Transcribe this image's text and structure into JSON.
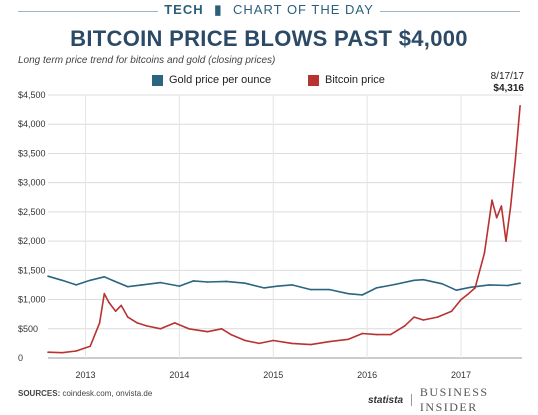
{
  "header": {
    "brand": "TECH",
    "brand_sub": "CHART OF THE DAY",
    "title": "BITCOIN PRICE BLOWS PAST $4,000",
    "subtitle": "Long term price trend for bitcoins and gold (closing prices)"
  },
  "legend": {
    "gold_label": "Gold price per ounce",
    "bitcoin_label": "Bitcoin price"
  },
  "annotation": {
    "date": "8/17/17",
    "value": "$4,316"
  },
  "footer": {
    "sources_label": "SOURCES:",
    "sources_text": "coindesk.com, onvista.de",
    "statista": "statista",
    "publisher": "BUSINESS INSIDER"
  },
  "colors": {
    "gold": "#2b6580",
    "bitcoin": "#b83232",
    "title": "#2c4a66"
  },
  "chart_data": {
    "type": "line",
    "ylim": [
      0,
      4500
    ],
    "xlim": [
      2012.6,
      2017.65
    ],
    "y_ticks": [
      {
        "value": 0,
        "label": "0"
      },
      {
        "value": 500,
        "label": "$500"
      },
      {
        "value": 1000,
        "label": "$1,000"
      },
      {
        "value": 1500,
        "label": "$1,500"
      },
      {
        "value": 2000,
        "label": "$2,000"
      },
      {
        "value": 2500,
        "label": "$2,500"
      },
      {
        "value": 3000,
        "label": "$3,000"
      },
      {
        "value": 3500,
        "label": "$3,500"
      },
      {
        "value": 4000,
        "label": "$4,000"
      },
      {
        "value": 4500,
        "label": "$4,500"
      }
    ],
    "x_ticks": [
      {
        "value": 2013,
        "label": "2013"
      },
      {
        "value": 2014,
        "label": "2014"
      },
      {
        "value": 2015,
        "label": "2015"
      },
      {
        "value": 2016,
        "label": "2016"
      },
      {
        "value": 2017,
        "label": "2017"
      }
    ],
    "grid": true,
    "series": [
      {
        "name": "Gold price per ounce",
        "color": "#2b6580",
        "x": [
          2012.6,
          2012.75,
          2012.9,
          2013.05,
          2013.2,
          2013.3,
          2013.45,
          2013.6,
          2013.8,
          2014.0,
          2014.15,
          2014.3,
          2014.5,
          2014.7,
          2014.9,
          2015.05,
          2015.2,
          2015.4,
          2015.6,
          2015.8,
          2015.95,
          2016.1,
          2016.3,
          2016.5,
          2016.6,
          2016.8,
          2016.95,
          2017.1,
          2017.3,
          2017.5,
          2017.63
        ],
        "y": [
          1400,
          1330,
          1250,
          1330,
          1390,
          1320,
          1220,
          1250,
          1290,
          1230,
          1320,
          1300,
          1310,
          1280,
          1200,
          1230,
          1250,
          1170,
          1170,
          1100,
          1080,
          1200,
          1260,
          1330,
          1340,
          1270,
          1160,
          1210,
          1250,
          1240,
          1280
        ]
      },
      {
        "name": "Bitcoin price",
        "color": "#b83232",
        "x": [
          2012.6,
          2012.75,
          2012.9,
          2013.05,
          2013.15,
          2013.2,
          2013.25,
          2013.32,
          2013.38,
          2013.45,
          2013.55,
          2013.65,
          2013.8,
          2013.95,
          2014.1,
          2014.3,
          2014.45,
          2014.55,
          2014.7,
          2014.85,
          2015.0,
          2015.2,
          2015.4,
          2015.6,
          2015.8,
          2015.95,
          2016.1,
          2016.25,
          2016.4,
          2016.5,
          2016.6,
          2016.75,
          2016.9,
          2017.0,
          2017.08,
          2017.15,
          2017.25,
          2017.33,
          2017.38,
          2017.43,
          2017.48,
          2017.53,
          2017.58,
          2017.63
        ],
        "y": [
          100,
          90,
          120,
          200,
          600,
          1100,
          950,
          800,
          900,
          700,
          600,
          550,
          500,
          600,
          500,
          450,
          500,
          400,
          300,
          250,
          300,
          250,
          230,
          280,
          320,
          420,
          400,
          400,
          550,
          700,
          650,
          700,
          800,
          1000,
          1100,
          1200,
          1800,
          2700,
          2400,
          2600,
          2000,
          2600,
          3400,
          4316
        ]
      }
    ]
  }
}
